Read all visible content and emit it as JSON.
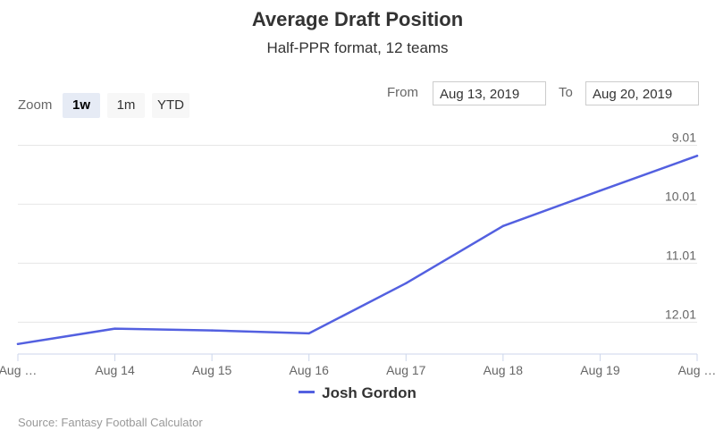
{
  "chart_data": {
    "type": "line",
    "title": "Average Draft Position",
    "subtitle": "Half-PPR format, 12 teams",
    "x": [
      "Aug …",
      "Aug 14",
      "Aug 15",
      "Aug 16",
      "Aug 17",
      "Aug 18",
      "Aug 19",
      "Aug …"
    ],
    "y_tick_labels": [
      "9.01",
      "10.01",
      "11.01",
      "12.01"
    ],
    "y_tick_values": [
      9.01,
      10.01,
      11.01,
      12.01
    ],
    "y_reversed": true,
    "ylim": [
      8.7,
      12.55
    ],
    "series": [
      {
        "name": "Josh Gordon",
        "color": "#5360e0",
        "values": [
          12.38,
          12.12,
          12.15,
          12.2,
          11.35,
          10.38,
          9.78,
          9.19
        ]
      }
    ],
    "grid": true,
    "legend": "bottom",
    "credits": "Source: Fantasy Football Calculator"
  },
  "controls": {
    "zoom_label": "Zoom",
    "zoom_buttons": [
      "1w",
      "1m",
      "YTD"
    ],
    "active_zoom": "1w",
    "from_label": "From",
    "from_value": "Aug 13, 2019",
    "to_label": "To",
    "to_value": "Aug 20, 2019"
  }
}
